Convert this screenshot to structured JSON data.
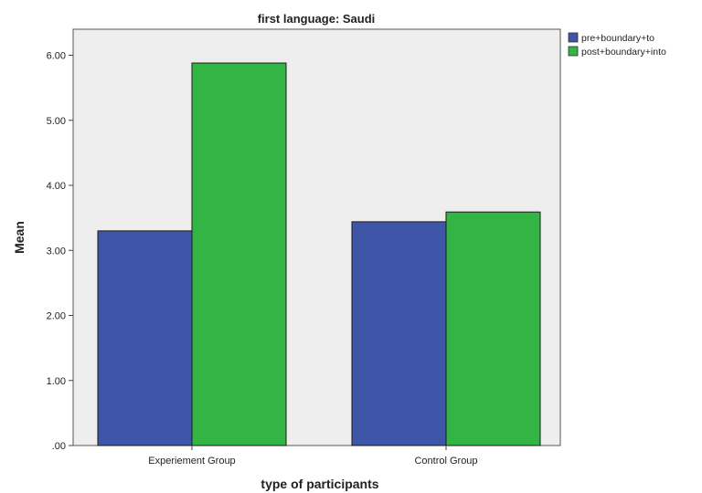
{
  "chart_data": {
    "type": "bar",
    "title": "first language: Saudi",
    "xlabel": "type of participants",
    "ylabel": "Mean",
    "categories": [
      "Experiement Group",
      "Control Group"
    ],
    "series": [
      {
        "name": "pre+boundary+to",
        "values": [
          3.3,
          3.44
        ],
        "color": "#3f56a8"
      },
      {
        "name": "post+boundary+into",
        "values": [
          5.88,
          3.59
        ],
        "color": "#33b546"
      }
    ],
    "ylim": [
      0,
      6.4
    ],
    "yticks": [
      ".00",
      "1.00",
      "2.00",
      "3.00",
      "4.00",
      "5.00",
      "6.00"
    ],
    "grid": false,
    "legend_position": "top-right",
    "plot_background": "#eeeeee"
  }
}
